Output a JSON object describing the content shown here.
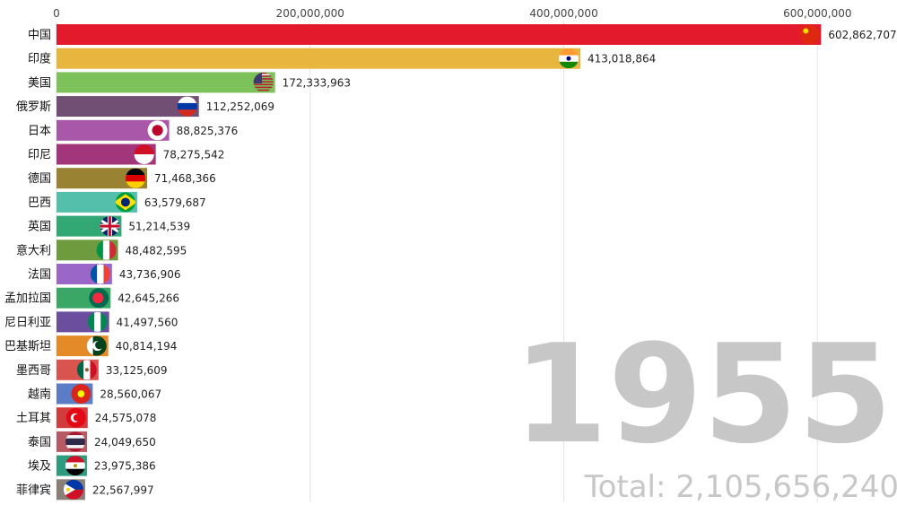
{
  "chart_data": {
    "type": "bar",
    "orientation": "horizontal",
    "xlim": [
      0,
      650000000
    ],
    "x_ticks": [
      {
        "value": 0,
        "label": "0"
      },
      {
        "value": 200000000,
        "label": "200,000,000"
      },
      {
        "value": 400000000,
        "label": "400,000,000"
      },
      {
        "value": 600000000,
        "label": "600,000,000"
      }
    ],
    "grid": true,
    "year": "1955",
    "total_label": "Total: 2,105,656,240",
    "bars": [
      {
        "category": "中国",
        "value": 602862707,
        "label": "602,862,707",
        "color": "#e31a2c",
        "flag": "china-flag"
      },
      {
        "category": "印度",
        "value": 413018864,
        "label": "413,018,864",
        "color": "#e8b53e",
        "flag": "india-flag"
      },
      {
        "category": "美国",
        "value": 172333963,
        "label": "172,333,963",
        "color": "#7dc15a",
        "flag": "usa-flag"
      },
      {
        "category": "俄罗斯",
        "value": 112252069,
        "label": "112,252,069",
        "color": "#714f75",
        "flag": "russia-flag"
      },
      {
        "category": "日本",
        "value": 88825376,
        "label": "88,825,376",
        "color": "#a957a8",
        "flag": "japan-flag"
      },
      {
        "category": "印尼",
        "value": 78275542,
        "label": "78,275,542",
        "color": "#a3357a",
        "flag": "indonesia-flag"
      },
      {
        "category": "德国",
        "value": 71468366,
        "label": "71,468,366",
        "color": "#9a8233",
        "flag": "germany-flag"
      },
      {
        "category": "巴西",
        "value": 63579687,
        "label": "63,579,687",
        "color": "#54c0ac",
        "flag": "brazil-flag"
      },
      {
        "category": "英国",
        "value": 51214539,
        "label": "51,214,539",
        "color": "#32a875",
        "flag": "uk-flag"
      },
      {
        "category": "意大利",
        "value": 48482595,
        "label": "48,482,595",
        "color": "#6e9b3e",
        "flag": "italy-flag"
      },
      {
        "category": "法国",
        "value": 43736906,
        "label": "43,736,906",
        "color": "#9a66c7",
        "flag": "france-flag"
      },
      {
        "category": "孟加拉国",
        "value": 42645266,
        "label": "42,645,266",
        "color": "#3ba767",
        "flag": "bangladesh-flag"
      },
      {
        "category": "尼日利亚",
        "value": 41497560,
        "label": "41,497,560",
        "color": "#6b4f9e",
        "flag": "nigeria-flag"
      },
      {
        "category": "巴基斯坦",
        "value": 40814194,
        "label": "40,814,194",
        "color": "#e48a26",
        "flag": "pakistan-flag"
      },
      {
        "category": "墨西哥",
        "value": 33125609,
        "label": "33,125,609",
        "color": "#d9534f",
        "flag": "mexico-flag"
      },
      {
        "category": "越南",
        "value": 28560067,
        "label": "28,560,067",
        "color": "#5b7cc6",
        "flag": "vietnam-flag"
      },
      {
        "category": "土耳其",
        "value": 24575078,
        "label": "24,575,078",
        "color": "#d33c3c",
        "flag": "turkey-flag"
      },
      {
        "category": "泰国",
        "value": 24049650,
        "label": "24,049,650",
        "color": "#b85a64",
        "flag": "thailand-flag"
      },
      {
        "category": "埃及",
        "value": 23975386,
        "label": "23,975,386",
        "color": "#2c9b7e",
        "flag": "egypt-flag"
      },
      {
        "category": "菲律宾",
        "value": 22567997,
        "label": "22,567,997",
        "color": "#8a7f77",
        "flag": "philippines-flag"
      }
    ]
  }
}
